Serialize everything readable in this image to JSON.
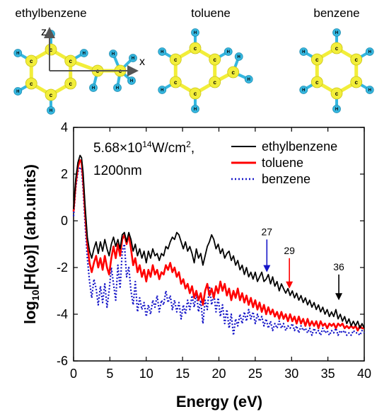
{
  "molecules": {
    "ethylbenzene": {
      "title": "ethylbenzene",
      "axis_z": "z",
      "axis_x": "x",
      "carbon_label": "c",
      "hydrogen_label": "H"
    },
    "toluene": {
      "title": "toluene",
      "carbon_label": "c",
      "hydrogen_label": "H"
    },
    "benzene": {
      "title": "benzene",
      "carbon_label": "c",
      "hydrogen_label": "H"
    }
  },
  "colors": {
    "carbon": "#f2ee3a",
    "hydrogen": "#35b7e0",
    "bond_cc": "#f2ee3a",
    "bond_ch": "#35b7e0",
    "ethylbenzene": "#000000",
    "toluene": "#ff0000",
    "benzene": "#1515c8"
  },
  "chart_data": {
    "type": "line",
    "xlabel": "Energy (eV)",
    "ylabel": "log10[H(ω)] (arb.units)",
    "ylabel_parts": {
      "lead": "log",
      "sub": "10",
      "rest": "[H(ω)] (arb.units)"
    },
    "xlim": [
      0,
      40
    ],
    "ylim": [
      -6,
      4
    ],
    "xticks": [
      0,
      5,
      10,
      15,
      20,
      25,
      30,
      35,
      40
    ],
    "yticks": [
      -6,
      -4,
      -2,
      0,
      2,
      4
    ],
    "annotation": {
      "line1_base": "5.68×10",
      "line1_exp": "14",
      "line1_unit": "W/cm",
      "line1_unit_exp": "2",
      "line1_tail": ",",
      "line2": "1200nm"
    },
    "legend_position": "top-right",
    "harmonic_markers": [
      {
        "label": "27",
        "x": 26.6,
        "y_start": -0.8,
        "y_end": -2.2,
        "series": "benzene"
      },
      {
        "label": "29",
        "x": 29.7,
        "y_start": -1.6,
        "y_end": -2.9,
        "series": "toluene"
      },
      {
        "label": "36",
        "x": 36.5,
        "y_start": -2.3,
        "y_end": -3.4,
        "series": "ethylbenzene"
      }
    ],
    "series": [
      {
        "name": "ethylbenzene",
        "style": "solid",
        "x": [
          0,
          0.3,
          0.6,
          0.9,
          1.1,
          1.3,
          1.6,
          1.9,
          2.2,
          2.5,
          2.8,
          3.1,
          3.4,
          3.7,
          4.0,
          4.3,
          4.6,
          4.9,
          5.2,
          5.5,
          5.8,
          6.1,
          6.4,
          6.7,
          7.0,
          7.3,
          7.6,
          7.9,
          8.2,
          8.5,
          8.8,
          9.1,
          9.4,
          9.7,
          10.0,
          10.3,
          10.6,
          10.9,
          11.2,
          11.5,
          11.8,
          12.1,
          12.4,
          12.7,
          13.0,
          13.3,
          13.6,
          13.9,
          14.2,
          14.5,
          14.8,
          15.1,
          15.4,
          15.7,
          16.0,
          16.3,
          16.6,
          16.9,
          17.2,
          17.5,
          17.8,
          18.1,
          18.4,
          18.7,
          19.0,
          19.3,
          19.6,
          19.9,
          20.2,
          20.5,
          20.8,
          21.1,
          21.4,
          21.7,
          22.0,
          22.3,
          22.6,
          22.9,
          23.2,
          23.5,
          23.8,
          24.1,
          24.4,
          24.7,
          25.0,
          25.3,
          25.6,
          25.9,
          26.2,
          26.5,
          26.8,
          27.1,
          27.4,
          27.7,
          28.0,
          28.3,
          28.6,
          28.9,
          29.2,
          29.5,
          29.8,
          30.1,
          30.4,
          30.7,
          31.0,
          31.3,
          31.6,
          31.9,
          32.2,
          32.5,
          32.8,
          33.1,
          33.4,
          33.7,
          34.0,
          34.3,
          34.6,
          34.9,
          35.2,
          35.5,
          35.8,
          36.1,
          36.4,
          36.7,
          37.0,
          37.3,
          37.6,
          37.9,
          38.2,
          38.5,
          38.8,
          39.1,
          39.4,
          39.7,
          40.0
        ],
        "y": [
          0.5,
          1.8,
          2.5,
          2.8,
          2.7,
          2.1,
          0.6,
          -0.7,
          -1.3,
          -1.6,
          -1.2,
          -0.9,
          -1.4,
          -0.9,
          -1.3,
          -0.8,
          -1.2,
          -1.5,
          -1.0,
          -0.7,
          -1.1,
          -0.8,
          -1.2,
          -0.6,
          -0.5,
          -0.9,
          -0.5,
          -0.8,
          -1.3,
          -1.0,
          -1.5,
          -1.2,
          -1.6,
          -1.3,
          -1.8,
          -1.3,
          -1.6,
          -1.2,
          -1.5,
          -1.4,
          -1.7,
          -1.4,
          -1.5,
          -1.1,
          -1.2,
          -0.9,
          -0.7,
          -0.8,
          -0.5,
          -0.6,
          -0.9,
          -1.2,
          -0.9,
          -1.3,
          -1.1,
          -1.4,
          -1.8,
          -1.2,
          -1.6,
          -1.4,
          -1.9,
          -1.5,
          -1.1,
          -0.9,
          -0.6,
          -0.8,
          -1.2,
          -1.0,
          -1.4,
          -1.2,
          -1.6,
          -1.4,
          -1.3,
          -1.7,
          -1.5,
          -1.9,
          -1.7,
          -2.1,
          -1.9,
          -2.3,
          -2.0,
          -2.4,
          -2.2,
          -2.5,
          -2.2,
          -2.6,
          -2.4,
          -2.2,
          -2.6,
          -2.5,
          -2.3,
          -2.7,
          -2.4,
          -2.8,
          -2.6,
          -3.0,
          -2.7,
          -2.9,
          -3.1,
          -2.9,
          -3.2,
          -3.0,
          -3.3,
          -3.1,
          -3.4,
          -3.2,
          -3.5,
          -3.3,
          -3.6,
          -3.4,
          -3.7,
          -3.5,
          -3.8,
          -3.6,
          -3.9,
          -3.7,
          -4.0,
          -3.8,
          -4.1,
          -3.9,
          -4.1,
          -3.8,
          -4.2,
          -4.0,
          -4.3,
          -4.1,
          -4.4,
          -4.2,
          -4.5,
          -4.3,
          -4.5,
          -4.3,
          -4.6,
          -4.4,
          -4.6
        ]
      },
      {
        "name": "toluene",
        "style": "solid",
        "x": [
          0,
          0.3,
          0.6,
          0.9,
          1.1,
          1.3,
          1.6,
          1.9,
          2.2,
          2.5,
          2.8,
          3.1,
          3.4,
          3.7,
          4.0,
          4.3,
          4.6,
          4.9,
          5.2,
          5.5,
          5.8,
          6.1,
          6.4,
          6.7,
          7.0,
          7.3,
          7.6,
          7.9,
          8.2,
          8.5,
          8.8,
          9.1,
          9.4,
          9.7,
          10.0,
          10.3,
          10.6,
          10.9,
          11.2,
          11.5,
          11.8,
          12.1,
          12.4,
          12.7,
          13.0,
          13.3,
          13.6,
          13.9,
          14.2,
          14.5,
          14.8,
          15.1,
          15.4,
          15.7,
          16.0,
          16.3,
          16.6,
          16.9,
          17.2,
          17.5,
          17.8,
          18.1,
          18.4,
          18.7,
          19.0,
          19.3,
          19.6,
          19.9,
          20.2,
          20.5,
          20.8,
          21.1,
          21.4,
          21.7,
          22.0,
          22.3,
          22.6,
          22.9,
          23.2,
          23.5,
          23.8,
          24.1,
          24.4,
          24.7,
          25.0,
          25.3,
          25.6,
          25.9,
          26.2,
          26.5,
          26.8,
          27.1,
          27.4,
          27.7,
          28.0,
          28.3,
          28.6,
          28.9,
          29.2,
          29.5,
          29.8,
          30.1,
          30.4,
          30.7,
          31.0,
          31.3,
          31.6,
          31.9,
          32.2,
          32.5,
          32.8,
          33.1,
          33.4,
          33.7,
          34.0,
          34.3,
          34.6,
          34.9,
          35.2,
          35.5,
          35.8,
          36.1,
          36.4,
          36.7,
          37.0,
          37.3,
          37.6,
          37.9,
          38.2,
          38.5,
          38.8,
          39.1,
          39.4,
          39.7,
          40.0
        ],
        "y": [
          0.4,
          1.6,
          2.3,
          2.6,
          2.5,
          1.8,
          0.3,
          -1.0,
          -1.8,
          -2.2,
          -1.8,
          -1.5,
          -2.0,
          -1.6,
          -2.1,
          -1.5,
          -2.0,
          -2.3,
          -1.6,
          -1.1,
          -1.6,
          -1.0,
          -1.5,
          -0.8,
          -0.6,
          -1.0,
          -0.6,
          -1.2,
          -1.9,
          -1.6,
          -2.2,
          -1.9,
          -2.4,
          -2.1,
          -2.6,
          -2.1,
          -2.4,
          -1.9,
          -2.3,
          -2.1,
          -2.5,
          -2.2,
          -2.3,
          -1.9,
          -2.1,
          -1.8,
          -2.2,
          -2.0,
          -2.4,
          -2.2,
          -2.7,
          -2.5,
          -2.9,
          -2.7,
          -3.1,
          -2.8,
          -3.3,
          -3.0,
          -3.4,
          -3.1,
          -3.6,
          -3.0,
          -2.7,
          -3.2,
          -2.9,
          -3.3,
          -2.8,
          -3.1,
          -2.6,
          -3.0,
          -2.7,
          -3.2,
          -2.9,
          -3.4,
          -3.0,
          -3.3,
          -2.9,
          -3.4,
          -3.1,
          -3.5,
          -3.2,
          -3.6,
          -3.3,
          -3.7,
          -3.4,
          -3.8,
          -3.5,
          -3.9,
          -3.6,
          -4.0,
          -3.7,
          -4.0,
          -3.8,
          -4.1,
          -3.9,
          -4.2,
          -3.9,
          -4.2,
          -4.0,
          -4.3,
          -4.0,
          -4.3,
          -4.1,
          -4.4,
          -4.1,
          -4.4,
          -4.2,
          -4.5,
          -4.2,
          -4.5,
          -4.3,
          -4.5,
          -4.3,
          -4.6,
          -4.3,
          -4.5,
          -4.4,
          -4.6,
          -4.4,
          -4.5,
          -4.4,
          -4.6,
          -4.4,
          -4.5,
          -4.4,
          -4.6,
          -4.5,
          -4.6,
          -4.5,
          -4.6,
          -4.5,
          -4.7,
          -4.5,
          -4.6,
          -4.6
        ]
      },
      {
        "name": "benzene",
        "style": "dotted",
        "x": [
          0,
          0.3,
          0.6,
          0.9,
          1.1,
          1.3,
          1.6,
          1.9,
          2.2,
          2.5,
          2.8,
          3.1,
          3.4,
          3.7,
          4.0,
          4.3,
          4.6,
          4.9,
          5.2,
          5.5,
          5.8,
          6.1,
          6.4,
          6.7,
          7.0,
          7.3,
          7.6,
          7.9,
          8.2,
          8.5,
          8.8,
          9.1,
          9.4,
          9.7,
          10.0,
          10.3,
          10.6,
          10.9,
          11.2,
          11.5,
          11.8,
          12.1,
          12.4,
          12.7,
          13.0,
          13.3,
          13.6,
          13.9,
          14.2,
          14.5,
          14.8,
          15.1,
          15.4,
          15.7,
          16.0,
          16.3,
          16.6,
          16.9,
          17.2,
          17.5,
          17.8,
          18.1,
          18.4,
          18.7,
          19.0,
          19.3,
          19.6,
          19.9,
          20.2,
          20.5,
          20.8,
          21.1,
          21.4,
          21.7,
          22.0,
          22.3,
          22.6,
          22.9,
          23.2,
          23.5,
          23.8,
          24.1,
          24.4,
          24.7,
          25.0,
          25.3,
          25.6,
          25.9,
          26.2,
          26.5,
          26.8,
          27.1,
          27.4,
          27.7,
          28.0,
          28.3,
          28.6,
          28.9,
          29.2,
          29.5,
          29.8,
          30.1,
          30.4,
          30.7,
          31.0,
          31.3,
          31.6,
          31.9,
          32.2,
          32.5,
          32.8,
          33.1,
          33.4,
          33.7,
          34.0,
          34.3,
          34.6,
          34.9,
          35.2,
          35.5,
          35.8,
          36.1,
          36.4,
          36.7,
          37.0,
          37.3,
          37.6,
          37.9,
          38.2,
          38.5,
          38.8,
          39.1,
          39.4,
          39.7,
          40.0
        ],
        "y": [
          0.2,
          1.4,
          2.1,
          2.3,
          2.2,
          1.4,
          -0.2,
          -1.6,
          -2.6,
          -3.3,
          -2.5,
          -2.9,
          -3.6,
          -2.8,
          -3.5,
          -2.7,
          -3.7,
          -3.0,
          -2.0,
          -2.7,
          -3.4,
          -1.9,
          -2.9,
          -1.3,
          -1.0,
          -2.4,
          -2.0,
          -3.0,
          -3.6,
          -2.6,
          -3.9,
          -3.3,
          -3.8,
          -3.5,
          -4.1,
          -3.6,
          -4.0,
          -3.4,
          -3.7,
          -3.2,
          -3.9,
          -3.4,
          -3.6,
          -3.0,
          -3.5,
          -3.2,
          -3.8,
          -3.4,
          -3.9,
          -3.5,
          -4.2,
          -3.6,
          -4.0,
          -3.4,
          -3.8,
          -3.2,
          -3.7,
          -3.1,
          -3.9,
          -3.4,
          -4.4,
          -3.4,
          -3.8,
          -2.8,
          -3.6,
          -3.1,
          -3.9,
          -3.3,
          -4.1,
          -3.6,
          -4.4,
          -3.8,
          -4.6,
          -4.0,
          -4.9,
          -4.2,
          -4.5,
          -4.0,
          -4.4,
          -3.9,
          -4.3,
          -3.8,
          -4.2,
          -3.9,
          -4.4,
          -4.0,
          -4.3,
          -4.1,
          -4.5,
          -4.2,
          -4.6,
          -4.3,
          -4.7,
          -4.4,
          -4.6,
          -4.3,
          -4.6,
          -4.4,
          -4.7,
          -4.5,
          -4.6,
          -4.4,
          -4.7,
          -4.5,
          -4.8,
          -4.5,
          -4.7,
          -4.6,
          -4.8,
          -4.6,
          -4.9,
          -4.6,
          -4.8,
          -4.7,
          -4.9,
          -4.6,
          -4.8,
          -4.7,
          -4.9,
          -4.7,
          -4.8,
          -4.6,
          -4.9,
          -4.7,
          -4.8,
          -4.7,
          -4.9,
          -4.8,
          -4.9,
          -4.7,
          -4.8,
          -4.8,
          -4.9,
          -4.7,
          -4.8
        ]
      }
    ]
  }
}
